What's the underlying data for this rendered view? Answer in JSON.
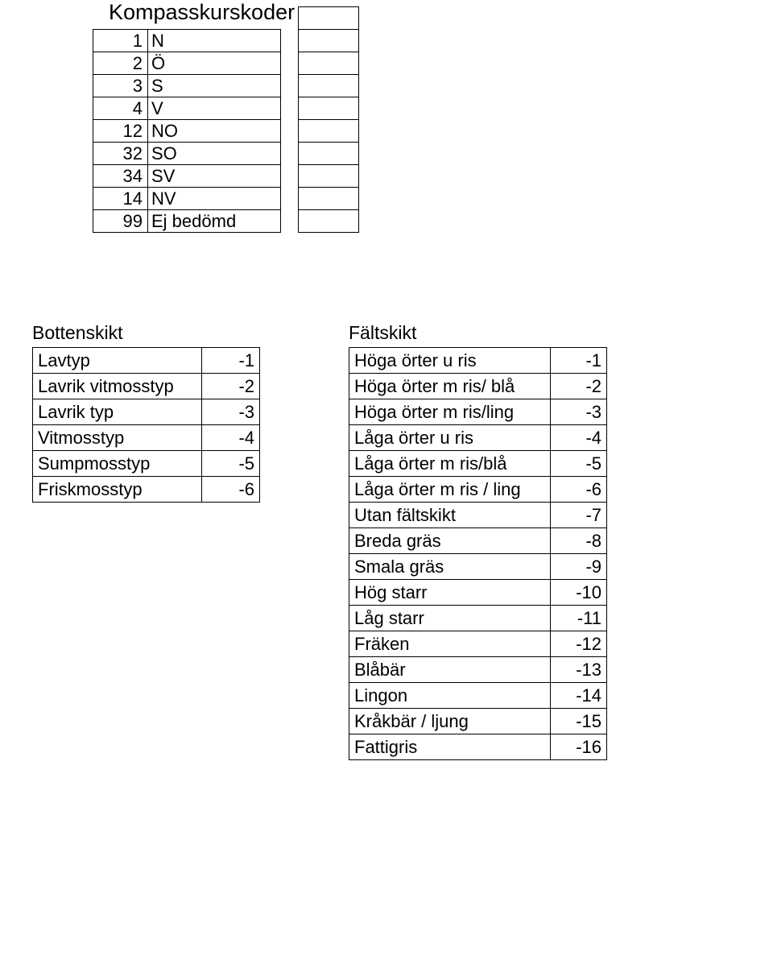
{
  "title": "Kompasskurskoder",
  "kompass": [
    {
      "code": 1,
      "val": "N"
    },
    {
      "code": 2,
      "val": "Ö"
    },
    {
      "code": 3,
      "val": "S"
    },
    {
      "code": 4,
      "val": "V"
    },
    {
      "code": 12,
      "val": "NO"
    },
    {
      "code": 32,
      "val": "SO"
    },
    {
      "code": 34,
      "val": "SV"
    },
    {
      "code": 14,
      "val": "NV"
    },
    {
      "code": 99,
      "val": "Ej bedömd"
    }
  ],
  "extra_rows": 10,
  "bottenskikt": {
    "title": "Bottenskikt",
    "rows": [
      {
        "label": "Lavtyp",
        "value": "-1"
      },
      {
        "label": "Lavrik vitmosstyp",
        "value": "-2"
      },
      {
        "label": "Lavrik typ",
        "value": "-3"
      },
      {
        "label": "Vitmosstyp",
        "value": "-4"
      },
      {
        "label": "Sumpmosstyp",
        "value": "-5"
      },
      {
        "label": "Friskmosstyp",
        "value": "-6"
      }
    ]
  },
  "faltskikt": {
    "title": "Fältskikt",
    "rows": [
      {
        "label": "Höga örter u ris",
        "value": "-1"
      },
      {
        "label": "Höga örter m ris/ blå",
        "value": "-2"
      },
      {
        "label": "Höga örter m ris/ling",
        "value": "-3"
      },
      {
        "label": "Låga örter u ris",
        "value": "-4"
      },
      {
        "label": "Låga örter m ris/blå",
        "value": "-5"
      },
      {
        "label": "Låga örter m ris / ling",
        "value": "-6"
      },
      {
        "label": "Utan fältskikt",
        "value": "-7"
      },
      {
        "label": "Breda gräs",
        "value": "-8"
      },
      {
        "label": "Smala gräs",
        "value": "-9"
      },
      {
        "label": "Hög starr",
        "value": "-10"
      },
      {
        "label": "Låg starr",
        "value": "-11"
      },
      {
        "label": "Fräken",
        "value": "-12"
      },
      {
        "label": "Blåbär",
        "value": "-13"
      },
      {
        "label": "Lingon",
        "value": "-14"
      },
      {
        "label": "Kråkbär / ljung",
        "value": "-15"
      },
      {
        "label": "Fattigris",
        "value": "-16"
      }
    ]
  }
}
